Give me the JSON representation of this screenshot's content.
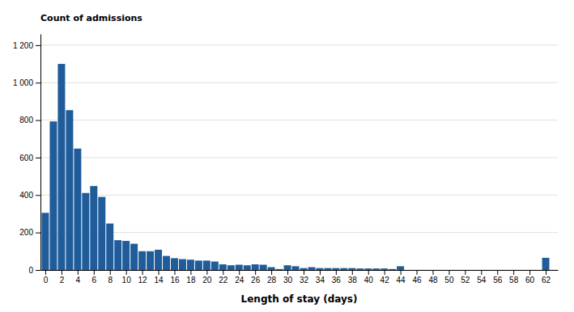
{
  "chart_data": {
    "type": "bar",
    "xlabel": "Length of stay (days)",
    "ylabel": "Count of admissions",
    "x": [
      0,
      1,
      2,
      3,
      4,
      5,
      6,
      7,
      8,
      9,
      10,
      11,
      12,
      13,
      14,
      15,
      16,
      17,
      18,
      19,
      20,
      21,
      22,
      23,
      24,
      25,
      26,
      27,
      28,
      29,
      30,
      31,
      32,
      33,
      34,
      35,
      36,
      37,
      38,
      39,
      40,
      41,
      42,
      43,
      44,
      62
    ],
    "values": [
      305,
      793,
      1100,
      853,
      648,
      411,
      448,
      390,
      248,
      159,
      155,
      140,
      100,
      100,
      108,
      75,
      63,
      58,
      55,
      50,
      50,
      45,
      30,
      25,
      28,
      25,
      30,
      28,
      15,
      5,
      25,
      20,
      10,
      15,
      10,
      10,
      10,
      10,
      10,
      8,
      8,
      8,
      8,
      5,
      20,
      65
    ],
    "color": "#1F5C99",
    "xlim": [
      -0.6,
      63.5
    ],
    "xticks": [
      0,
      2,
      4,
      6,
      8,
      10,
      12,
      14,
      16,
      18,
      20,
      22,
      24,
      26,
      28,
      30,
      32,
      34,
      36,
      38,
      40,
      42,
      44,
      46,
      48,
      50,
      52,
      54,
      56,
      58,
      60,
      62
    ],
    "ylim": [
      0,
      1260
    ],
    "yticks": [
      0,
      200,
      400,
      600,
      800,
      {
        "value": 1000,
        "label": "1 000"
      },
      {
        "value": 1200,
        "label": "1 200"
      }
    ],
    "grid": true
  }
}
